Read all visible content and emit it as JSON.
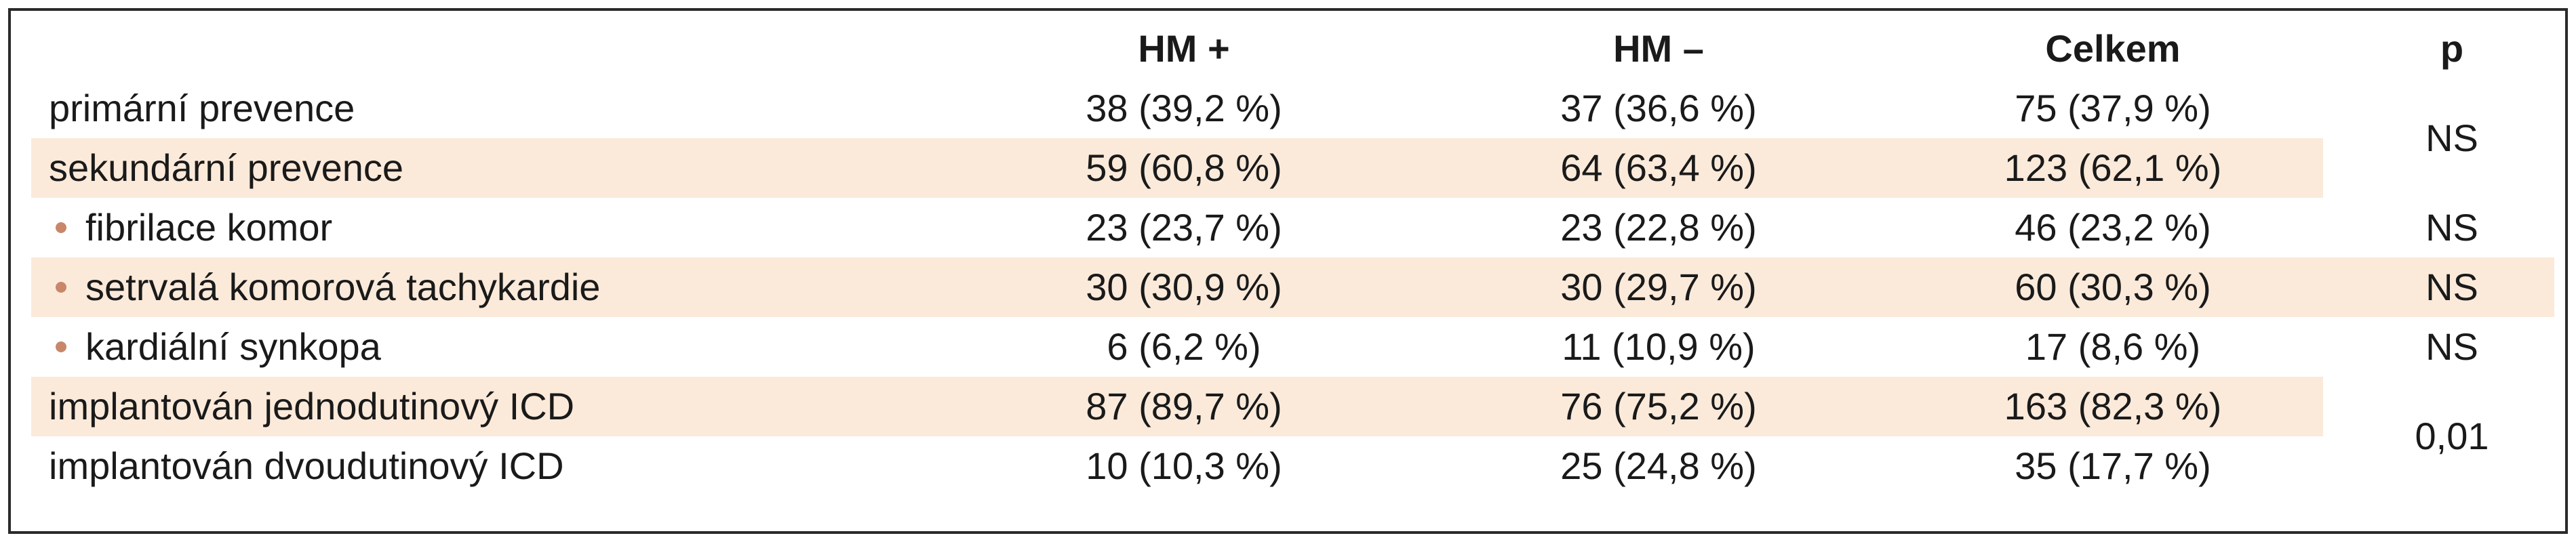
{
  "headers": {
    "hm_plus": "HM +",
    "hm_minus": "HM –",
    "total": "Celkem",
    "p": "p"
  },
  "rows": [
    {
      "label": "primární prevence",
      "hm_plus": "38 (39,2 %)",
      "hm_minus": "37 (36,6 %)",
      "total": "75 (37,9 %)"
    },
    {
      "label": "sekundární prevence",
      "hm_plus": "59 (60,8 %)",
      "hm_minus": "64 (63,4 %)",
      "total": "123 (62,1 %)"
    },
    {
      "label": "fibrilace komor",
      "hm_plus": "23 (23,7 %)",
      "hm_minus": "23 (22,8 %)",
      "total": "46 (23,2 %)",
      "p": "NS"
    },
    {
      "label": "setrvalá komorová tachykardie",
      "hm_plus": "30 (30,9 %)",
      "hm_minus": "30 (29,7 %)",
      "total": "60 (30,3 %)",
      "p": "NS"
    },
    {
      "label": "kardiální synkopa",
      "hm_plus": "6 (6,2 %)",
      "hm_minus": "11 (10,9 %)",
      "total": "17 (8,6 %)",
      "p": "NS"
    },
    {
      "label": "implantován jednodutinový ICD",
      "hm_plus": "87 (89,7 %)",
      "hm_minus": "76 (75,2 %)",
      "total": "163 (82,3 %)"
    },
    {
      "label": "implantován dvoudutinový ICD",
      "hm_plus": "10 (10,3 %)",
      "hm_minus": "25 (24,8 %)",
      "total": "35 (17,7 %)"
    }
  ],
  "merged_p": {
    "prevention": "NS",
    "icd": "0,01"
  },
  "colors": {
    "band": "#fbeada",
    "bullet": "#c8876a",
    "border": "#2a2a2a"
  }
}
